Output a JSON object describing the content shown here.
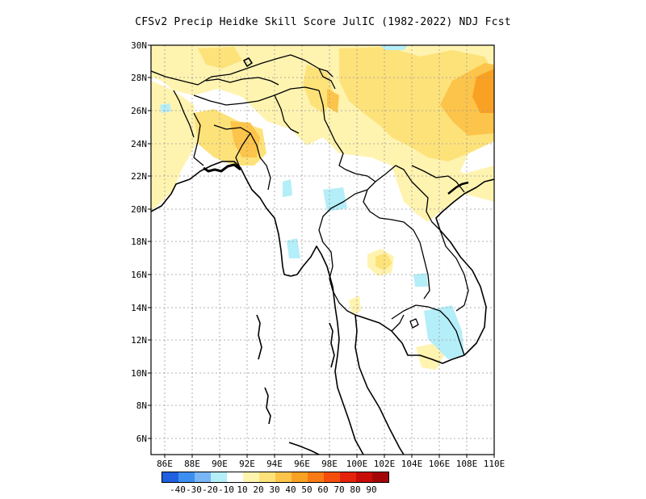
{
  "title": "CFSv2 Precip Heidke Skill Score JulIC (1982-2022) NDJ Fcst",
  "map": {
    "lon_range": [
      85,
      110
    ],
    "lat_range": [
      5,
      30
    ],
    "x_ticks": [
      "86E",
      "88E",
      "90E",
      "92E",
      "94E",
      "96E",
      "98E",
      "100E",
      "102E",
      "104E",
      "106E",
      "108E",
      "110E"
    ],
    "y_ticks": [
      "6N",
      "8N",
      "10N",
      "12N",
      "14N",
      "16N",
      "18N",
      "20N",
      "22N",
      "24N",
      "26N",
      "28N",
      "30N"
    ],
    "gridlines": "dotted",
    "skill_regions": [
      {
        "category": "10-20",
        "area": "Northern Myanmar / Yunnan / Southern China"
      },
      {
        "category": "20-30",
        "area": "Bangladesh / Manipur / Guangxi"
      },
      {
        "category": "30-40",
        "area": "Eastern China near 108E-110E, 26N-28N"
      },
      {
        "category": "-10-(-20)",
        "area": "Central Myanmar / Cambodia / Laos patches"
      }
    ]
  },
  "colorbar": {
    "colors": [
      "#1f5fe0",
      "#3c8ef0",
      "#78b6f5",
      "#b4eef8",
      "#ffffff",
      "#fff3b0",
      "#fde27a",
      "#fcc44a",
      "#f9a123",
      "#f87b15",
      "#f54e0c",
      "#e5230a",
      "#c80c08",
      "#a30606"
    ],
    "labels": [
      "-40",
      "-30",
      "-20",
      "-10",
      "10",
      "20",
      "30",
      "40",
      "50",
      "60",
      "70",
      "80",
      "90"
    ]
  }
}
